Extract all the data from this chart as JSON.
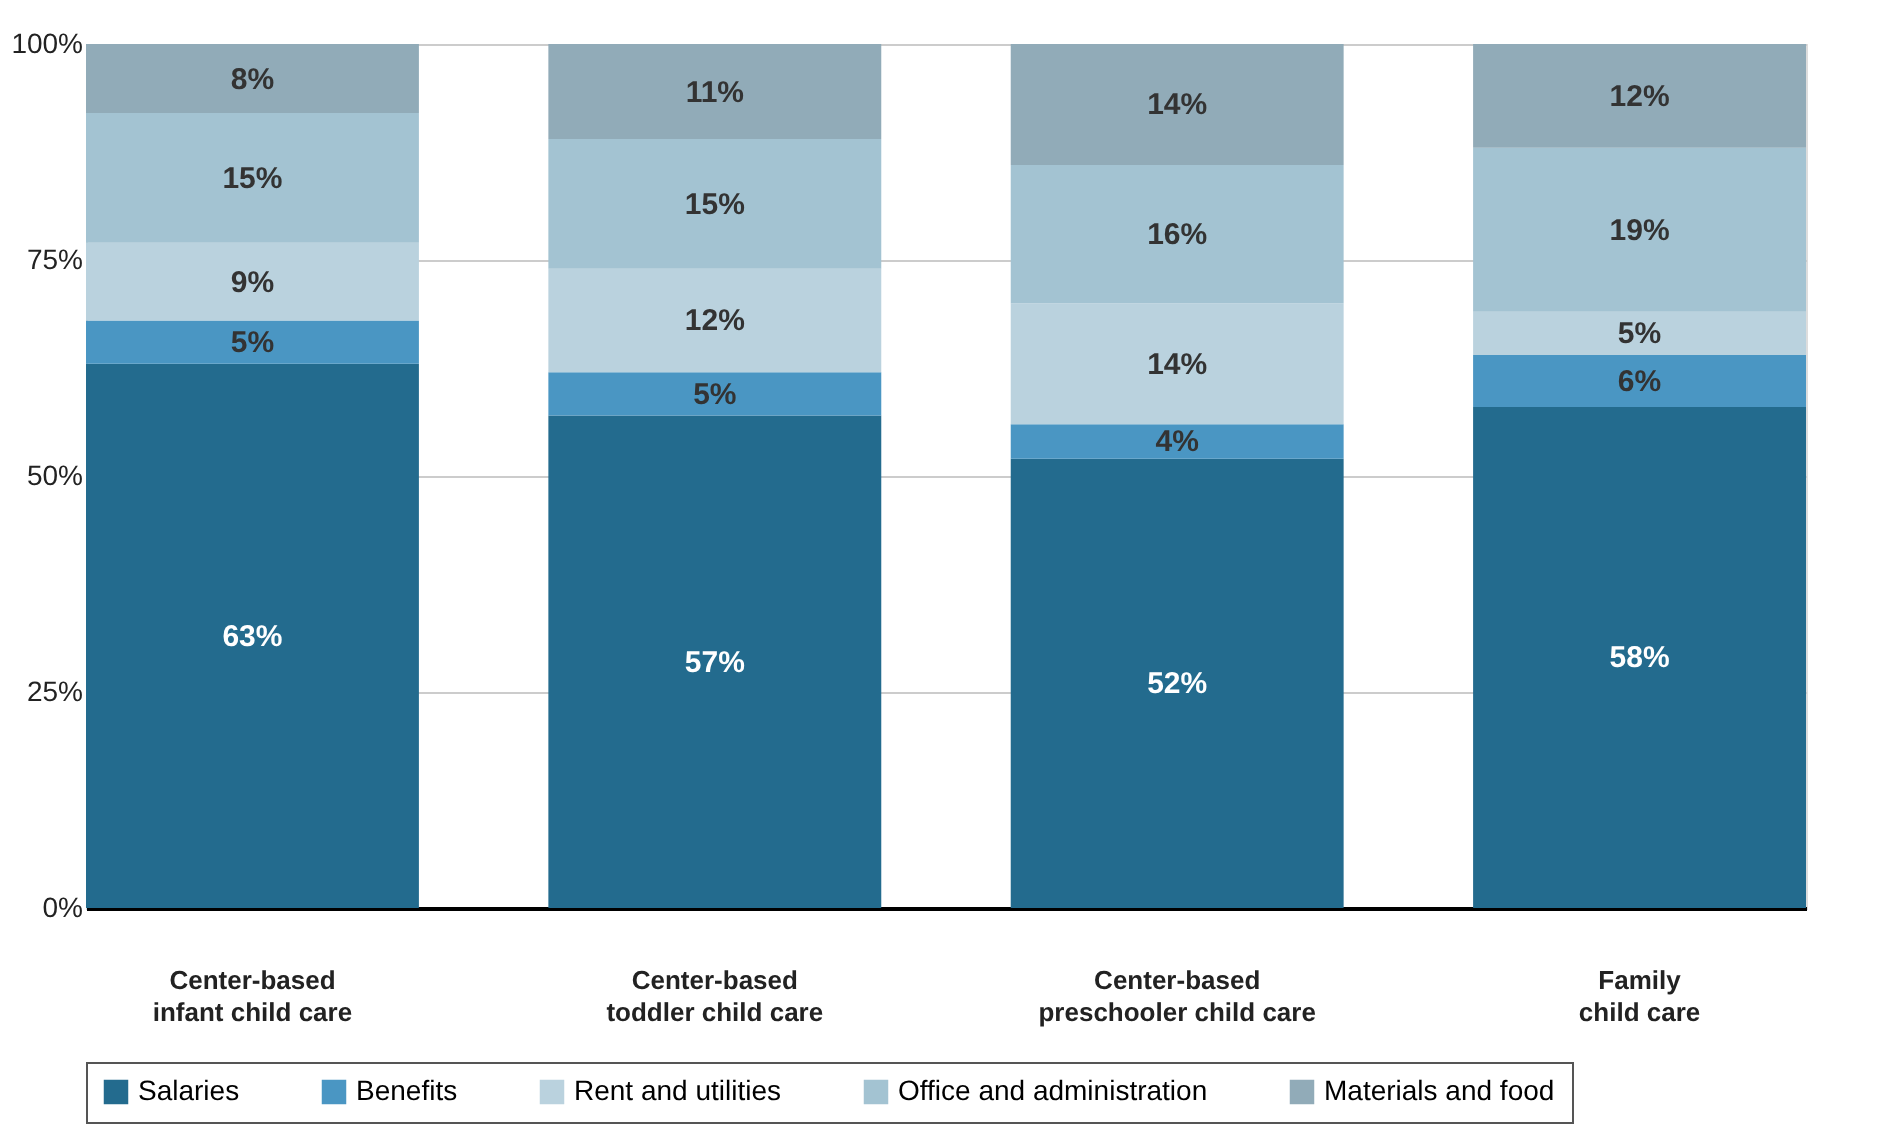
{
  "chart_data": {
    "type": "bar",
    "stacked": true,
    "categories": [
      "Center-based infant child care",
      "Center-based toddler child care",
      "Center-based preschooler child care",
      "Family child care"
    ],
    "series": [
      {
        "name": "Salaries",
        "color": "#236b8e",
        "values": [
          63,
          57,
          52,
          58
        ],
        "value_labels": [
          "63%",
          "57%",
          "52%",
          "58%"
        ]
      },
      {
        "name": "Benefits",
        "color": "#4a96c3",
        "values": [
          5,
          5,
          4,
          6
        ],
        "value_labels": [
          "5%",
          "5%",
          "4%",
          "6%"
        ]
      },
      {
        "name": "Rent and utilities",
        "color": "#bad2de",
        "values": [
          9,
          12,
          14,
          5
        ],
        "value_labels": [
          "9%",
          "12%",
          "14%",
          "5%"
        ]
      },
      {
        "name": "Office and administration",
        "color": "#a3c3d2",
        "values": [
          15,
          15,
          16,
          19
        ],
        "value_labels": [
          "15%",
          "15%",
          "16%",
          "19%"
        ]
      },
      {
        "name": "Materials and food",
        "color": "#91abb8",
        "values": [
          8,
          11,
          14,
          12
        ],
        "value_labels": [
          "8%",
          "11%",
          "14%",
          "12%"
        ]
      }
    ],
    "ylim": [
      0,
      100
    ],
    "yticks": [
      {
        "value": 0,
        "label": "0%"
      },
      {
        "value": 25,
        "label": "25%"
      },
      {
        "value": 50,
        "label": "50%"
      },
      {
        "value": 75,
        "label": "75%"
      },
      {
        "value": 100,
        "label": "100%"
      }
    ],
    "grid": "y",
    "legend": "bottom"
  }
}
